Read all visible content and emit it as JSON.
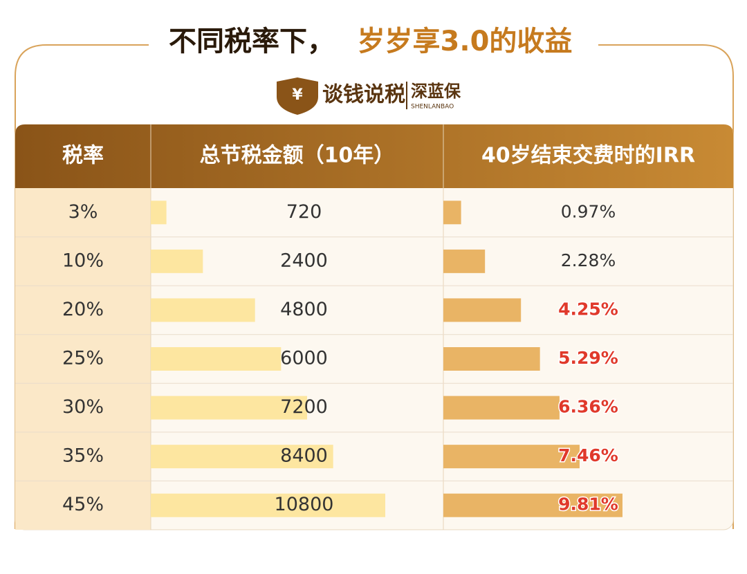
{
  "header": {
    "title_main": "不同税率下，",
    "title_accent": "岁岁享3.0的收益"
  },
  "logo": {
    "symbol": "¥",
    "name": "谈钱说税",
    "brand": "深蓝保",
    "brand_en": "SHENLANBAO"
  },
  "table": {
    "columns": [
      "税率",
      "总节税金额（10年）",
      "40岁结束交费时的IRR"
    ],
    "rows": [
      {
        "tax_rate": "3%",
        "tax_saving": 720,
        "irr": 0.97,
        "irr_label": "0.97%",
        "irr_color": "#333333"
      },
      {
        "tax_rate": "10%",
        "tax_saving": 2400,
        "irr": 2.28,
        "irr_label": "2.28%",
        "irr_color": "#333333"
      },
      {
        "tax_rate": "20%",
        "tax_saving": 4800,
        "irr": 4.25,
        "irr_label": "4.25%",
        "irr_color": "#e0392b"
      },
      {
        "tax_rate": "25%",
        "tax_saving": 6000,
        "irr": 5.29,
        "irr_label": "5.29%",
        "irr_color": "#e0392b"
      },
      {
        "tax_rate": "30%",
        "tax_saving": 7200,
        "irr": 6.36,
        "irr_label": "6.36%",
        "irr_color": "#e0392b"
      },
      {
        "tax_rate": "35%",
        "tax_saving": 8400,
        "irr": 7.46,
        "irr_label": "7.46%",
        "irr_color": "#e0392b"
      },
      {
        "tax_rate": "45%",
        "tax_saving": 10800,
        "irr": 9.81,
        "irr_label": "9.81%",
        "irr_color": "#e0392b"
      }
    ],
    "saving_bar_color": "#fde6a0",
    "irr_bar_color": "#e9b465"
  }
}
